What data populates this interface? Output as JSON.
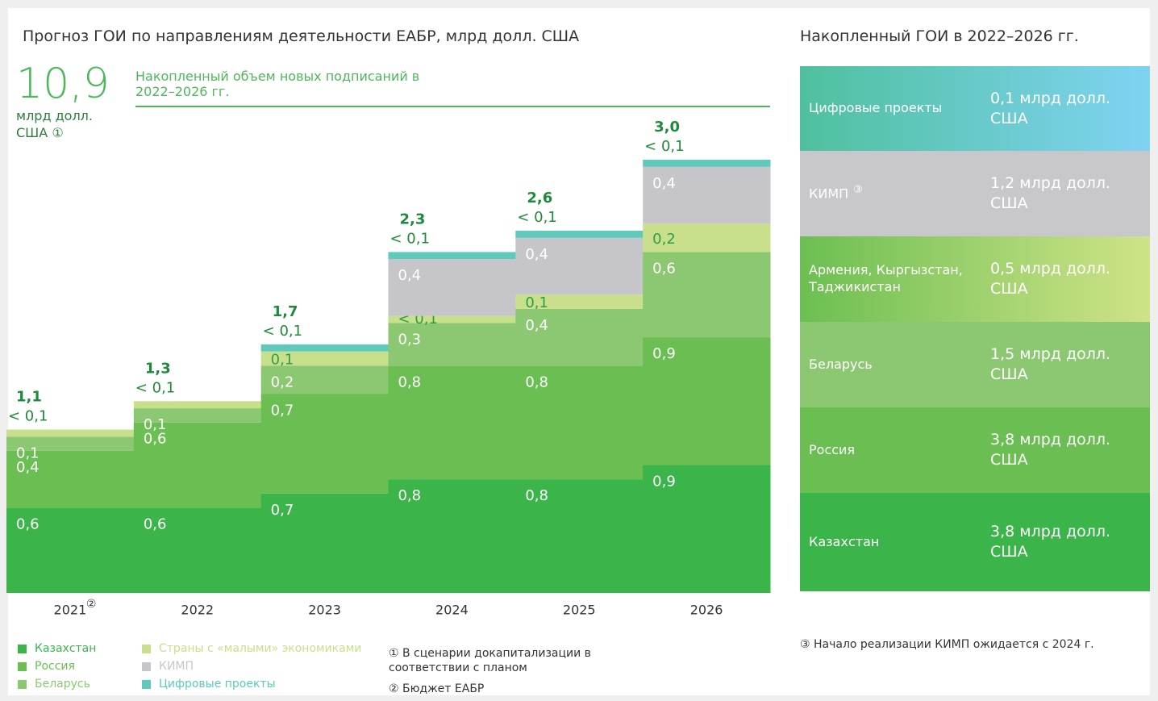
{
  "header": {
    "title": "Прогноз ГОИ по направлениям деятельности ЕАБР, млрд долл. США",
    "big_value": "10,9",
    "big_unit": "млрд долл. США",
    "big_unit_note": "①",
    "big_caption": "Накопленный объем новых подписаний в 2022–2026 гг."
  },
  "chart_data": {
    "type": "stacked_bar",
    "categories": [
      "2021",
      "2022",
      "2023",
      "2024",
      "2025",
      "2026"
    ],
    "category_notes": [
      "②",
      null,
      null,
      null,
      null,
      null
    ],
    "series": [
      {
        "name": "Казахстан",
        "color": "#3bb54a",
        "values": [
          0.6,
          0.6,
          0.7,
          0.8,
          0.8,
          0.9
        ],
        "value_labels": [
          "0,6",
          "0,6",
          "0,7",
          "0,8",
          "0,8",
          "0,9"
        ]
      },
      {
        "name": "Россия",
        "color": "#6bbf52",
        "values": [
          0.4,
          0.6,
          0.7,
          0.8,
          0.8,
          0.9
        ],
        "value_labels": [
          "0,4",
          "0,6",
          "0,7",
          "0,8",
          "0,8",
          "0,9"
        ]
      },
      {
        "name": "Беларусь",
        "color": "#8cc872",
        "values": [
          0.1,
          0.1,
          0.2,
          0.3,
          0.4,
          0.6
        ],
        "value_labels": [
          "0,1",
          "0,1",
          "0,2",
          "0,3",
          "0,4",
          "0,6"
        ]
      },
      {
        "name": "Страны с «малыми» экономиками",
        "color": "#c8e08c",
        "values": [
          0.05,
          0.05,
          0.1,
          0.05,
          0.1,
          0.2
        ],
        "value_labels": [
          "< 0,1",
          "< 0,1",
          "0,1",
          "< 0,1",
          "0,1",
          "0,2"
        ]
      },
      {
        "name": "КИМП",
        "color": "#c6c6ca",
        "values": [
          null,
          null,
          null,
          0.4,
          0.4,
          0.4
        ],
        "value_labels": [
          null,
          null,
          null,
          "0,4",
          "0,4",
          "0,4"
        ]
      },
      {
        "name": "Цифровые проекты",
        "color": "#5fc9bb",
        "values": [
          null,
          null,
          0.05,
          0.05,
          0.05,
          0.05
        ],
        "value_labels": [
          null,
          null,
          "< 0,1",
          "< 0,1",
          "< 0,1",
          "< 0,1"
        ]
      }
    ],
    "totals": [
      1.1,
      1.3,
      1.7,
      2.3,
      2.6,
      3.0
    ],
    "totals_labels": [
      "1,1",
      "1,3",
      "1,7",
      "2,3",
      "2,6",
      "3,0"
    ]
  },
  "panel": {
    "title": "Накопленный ГОИ в 2022–2026 гг.",
    "rows": [
      {
        "label": "Цифровые проекты",
        "value": "0,1 млрд долл. США",
        "bg": "linear-gradient(90deg,#4fc09e,#7fd3f2)"
      },
      {
        "label": "КИМП",
        "note": "③",
        "value": "1,2 млрд долл. США",
        "bg": "#c8c8cc"
      },
      {
        "label": "Армения, Кыргызстан, Таджикистан",
        "value": "0,5 млрд долл. США",
        "bg": "linear-gradient(90deg,#6cbf52,#cfe388)"
      },
      {
        "label": "Беларусь",
        "value": "1,5 млрд долл. США",
        "bg": "#8cc872"
      },
      {
        "label": "Россия",
        "value": "3,8 млрд долл. США",
        "bg": "#6bbf52"
      },
      {
        "label": "Казахстан",
        "value": "3,8 млрд долл. США",
        "bg": "#3bb54a"
      }
    ]
  },
  "footnotes": [
    "① В сценарии докапитализации в соответствии с планом",
    "② Бюджет ЕАБР",
    "③ Начало реализации КИМП ожидается с 2024 г."
  ]
}
